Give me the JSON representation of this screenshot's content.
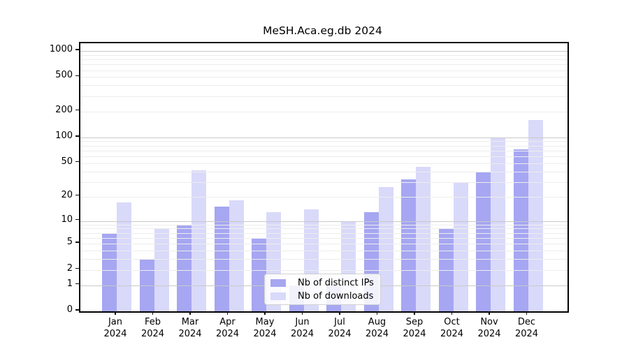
{
  "chart_data": {
    "type": "bar",
    "title": "MeSH.Aca.eg.db 2024",
    "year_label": "2024",
    "categories": [
      "Jan",
      "Feb",
      "Mar",
      "Apr",
      "May",
      "Jun",
      "Jul",
      "Aug",
      "Sep",
      "Oct",
      "Nov",
      "Dec"
    ],
    "series": [
      {
        "name": "Nb of distinct IPs",
        "color": "#a6a6f2",
        "values": [
          7,
          3,
          9,
          15,
          6,
          1,
          1,
          13,
          32,
          8,
          40,
          73
        ]
      },
      {
        "name": "Nb of downloads",
        "color": "#d9d9fa",
        "values": [
          17,
          8,
          41,
          18,
          13,
          14,
          10,
          26,
          45,
          30,
          100,
          160
        ]
      }
    ],
    "y_ticks": [
      0,
      1,
      2,
      5,
      10,
      20,
      50,
      100,
      200,
      500,
      1000
    ],
    "y_scale": "log1p",
    "ylim": [
      0,
      1225
    ],
    "xlabel": "",
    "ylabel": "",
    "grid": "horizontal, minor log subdivisions, drawn over bars",
    "legend_position": "lower center inside plot",
    "colors": {
      "spine": "#000000",
      "major_gridline": "#c9c9c9",
      "minor_gridline": "#ededed",
      "background": "#ffffff",
      "text": "#000000"
    }
  }
}
